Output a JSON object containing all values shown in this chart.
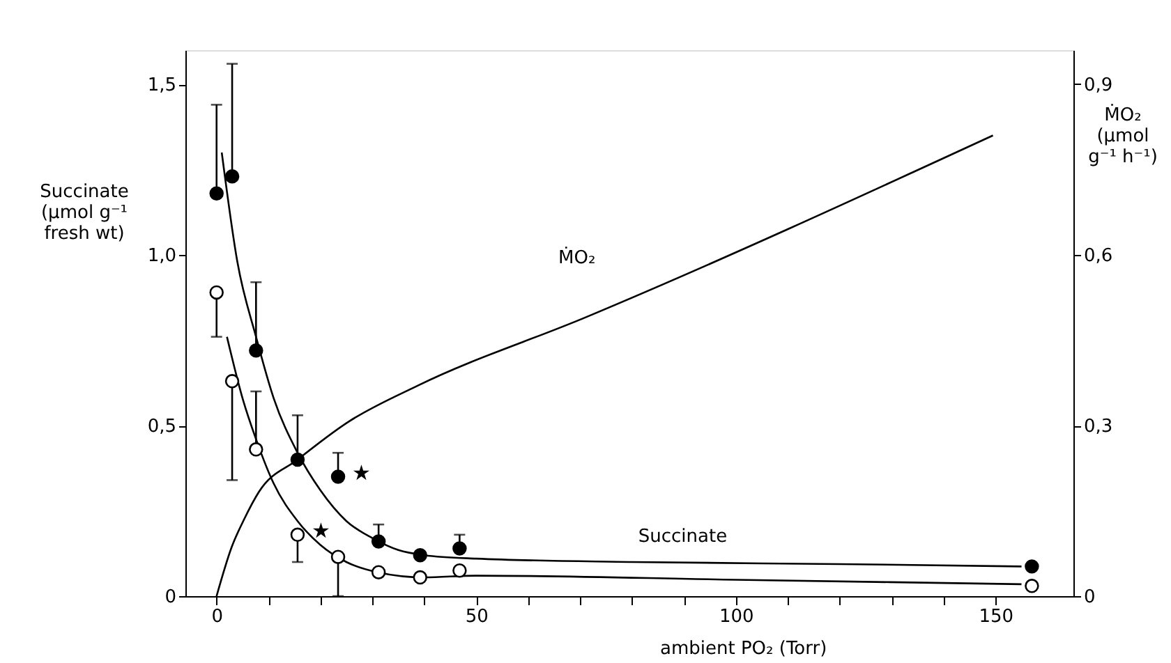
{
  "chart_data": {
    "type": "scatter",
    "xlabel": "ambient PO₂ (Torr)",
    "ylabel": "Succinate (µmol g⁻¹ fresh wt)",
    "y2label": "ṀO₂ (µmol g⁻¹ h⁻¹)",
    "xlim": [
      -6,
      165
    ],
    "ylim": [
      0,
      1.6
    ],
    "y2lim": [
      0,
      0.96
    ],
    "xticks": [
      0,
      {
        "value": 10,
        "label": null
      },
      {
        "value": 20,
        "label": null
      },
      {
        "value": 30,
        "label": null
      },
      {
        "value": 40,
        "label": null
      },
      50,
      {
        "value": 60,
        "label": null
      },
      {
        "value": 70,
        "label": null
      },
      {
        "value": 80,
        "label": null
      },
      {
        "value": 90,
        "label": null
      },
      100,
      {
        "value": 110,
        "label": null
      },
      {
        "value": 120,
        "label": null
      },
      {
        "value": 130,
        "label": null
      },
      {
        "value": 140,
        "label": null
      },
      150
    ],
    "yticks": [
      0,
      {
        "value": 0.5,
        "label": "0,5"
      },
      {
        "value": 1.0,
        "label": "1,0"
      },
      {
        "value": 1.5,
        "label": "1,5"
      }
    ],
    "y2ticks": [
      0,
      {
        "value": 0.3,
        "label": "0,3"
      },
      {
        "value": 0.6,
        "label": "0,6"
      },
      {
        "value": 0.9,
        "label": "0,9"
      }
    ],
    "grid": false,
    "series": [
      {
        "type": "line",
        "color": "#000000",
        "marker": "none",
        "x": [
          1,
          4,
          7.6,
          11,
          15.6,
          20,
          25,
          30,
          35,
          40,
          50,
          80,
          120,
          155
        ],
        "values": [
          1.3,
          0.98,
          0.76,
          0.58,
          0.42,
          0.31,
          0.22,
          0.17,
          0.135,
          0.12,
          0.11,
          0.1,
          0.094,
          0.087
        ]
      },
      {
        "type": "line",
        "color": "#000000",
        "marker": "none",
        "x": [
          2,
          5,
          7.6,
          11,
          15.6,
          20,
          25,
          31,
          40,
          50,
          100,
          155
        ],
        "values": [
          0.76,
          0.58,
          0.46,
          0.33,
          0.22,
          0.15,
          0.1,
          0.07,
          0.055,
          0.06,
          0.048,
          0.035
        ]
      },
      {
        "type": "line",
        "color": "#000000",
        "marker": "none",
        "axis": "y2",
        "x": [
          0,
          2.9,
          5.3,
          8.2,
          15.6,
          25.3,
          38.7,
          71,
          149.5
        ],
        "values": [
          0,
          0.086,
          0.135,
          0.184,
          0.24,
          0.306,
          0.37,
          0.49,
          0.81
        ]
      },
      {
        "color": "#000000",
        "marker": "circle",
        "x": [
          0,
          3,
          7.6,
          15.6,
          23.4,
          31.2,
          39.2,
          46.8,
          157
        ],
        "values": [
          1.18,
          1.23,
          0.72,
          0.4,
          0.35,
          0.16,
          0.12,
          0.14,
          0.087
        ],
        "errors": [
          [
            1.18,
            1.44
          ],
          [
            1.23,
            1.56
          ],
          [
            0.72,
            0.92
          ],
          [
            0.4,
            0.53
          ],
          [
            0.35,
            0.42
          ],
          [
            0.16,
            0.21
          ],
          null,
          [
            0.14,
            0.18
          ],
          null
        ]
      },
      {
        "color": "#ffffff",
        "marker": "circle",
        "x": [
          0,
          3,
          7.6,
          15.6,
          23.4,
          31.2,
          39.2,
          46.8,
          157
        ],
        "values": [
          0.89,
          0.63,
          0.43,
          0.18,
          0.115,
          0.07,
          0.055,
          0.075,
          0.03
        ],
        "errors": [
          [
            0.76,
            0.89
          ],
          [
            0.34,
            0.63
          ],
          [
            0.43,
            0.6
          ],
          [
            0.1,
            0.18
          ],
          [
            0,
            0.115
          ],
          null,
          null,
          null,
          null
        ]
      }
    ],
    "annotations": [
      "Succinate",
      "ṀO₂",
      {
        "text": "★",
        "x": 15.6,
        "y": 0.18
      },
      {
        "text": "★",
        "x": 23.4,
        "y": 0.35
      }
    ]
  }
}
